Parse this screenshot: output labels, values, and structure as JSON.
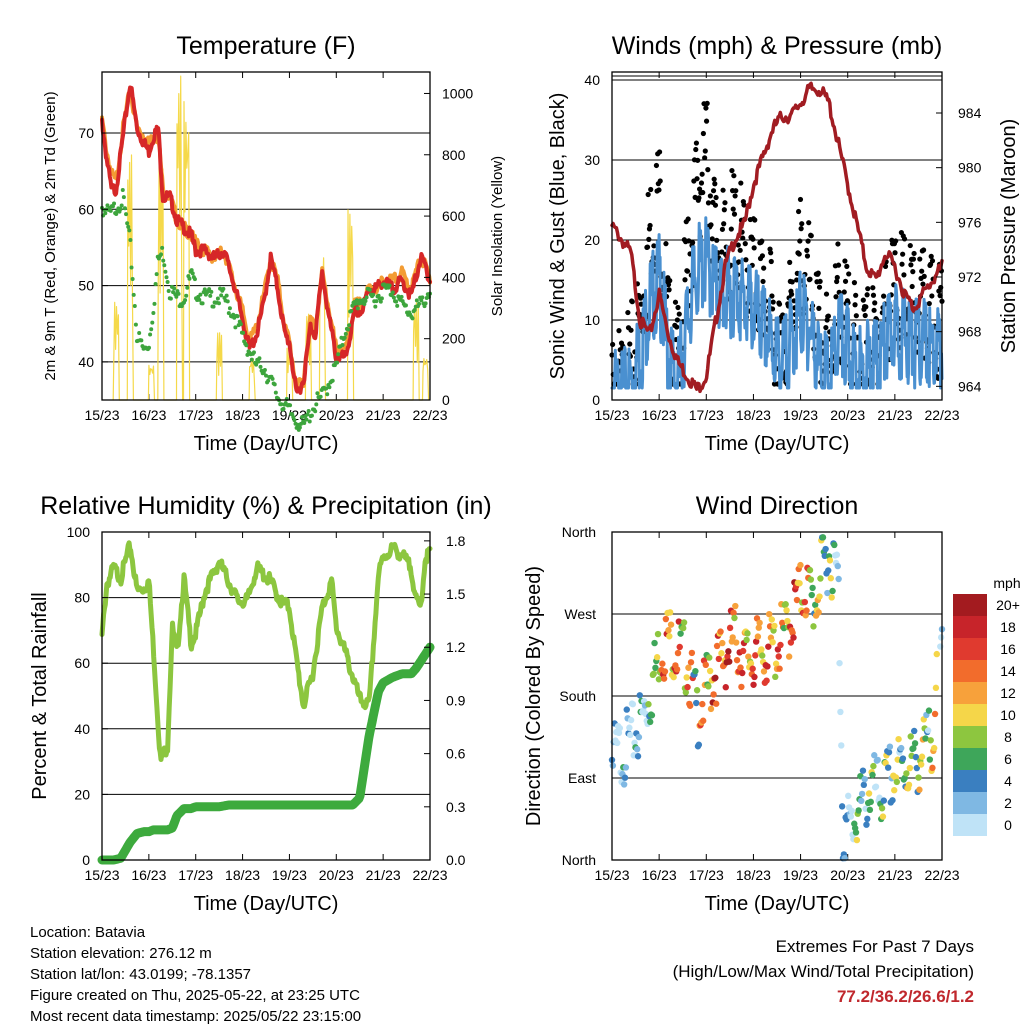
{
  "x_ticks": [
    "15/23",
    "16/23",
    "17/23",
    "18/23",
    "19/23",
    "20/23",
    "21/23",
    "22/23"
  ],
  "x_label": "Time (Day/UTC)",
  "panels": {
    "temperature": {
      "title": "Temperature (F)",
      "ylabel_left": "2m & 9m T (Red, Orange) & 2m Td (Green)",
      "ylabel_right": "Solar Insolation (Yellow)",
      "left_ticks": [
        "40",
        "50",
        "60",
        "70"
      ],
      "right_ticks": [
        "0",
        "200",
        "400",
        "600",
        "800",
        "1000"
      ]
    },
    "winds": {
      "title": "Winds (mph) & Pressure (mb)",
      "ylabel_left": "Sonic Wind & Gust (Blue, Black)",
      "ylabel_right": "Station Pressure (Maroon)",
      "left_ticks": [
        "0",
        "10",
        "20",
        "30",
        "40"
      ],
      "right_ticks": [
        "964",
        "968",
        "972",
        "976",
        "980",
        "984"
      ]
    },
    "humidity": {
      "title": "Relative Humidity (%) & Precipitation (in)",
      "ylabel_left": "Percent & Total Rainfall",
      "left_ticks": [
        "0",
        "20",
        "40",
        "60",
        "80",
        "100"
      ],
      "right_ticks": [
        "0.0",
        "0.3",
        "0.6",
        "0.9",
        "1.2",
        "1.5",
        "1.8"
      ]
    },
    "direction": {
      "title": "Wind Direction",
      "ylabel_left": "Direction (Colored By Speed)",
      "left_ticks": [
        "North",
        "East",
        "South",
        "West",
        "North"
      ],
      "legend_title": "mph",
      "legend_labels": [
        "20+",
        "18",
        "16",
        "14",
        "12",
        "10",
        "8",
        "6",
        "4",
        "2",
        "0"
      ],
      "legend_colors": [
        "#a31b1f",
        "#c7242a",
        "#e03a2f",
        "#f26c2c",
        "#f7a13b",
        "#f5d649",
        "#8dc63f",
        "#3ea65a",
        "#3a7fc0",
        "#7fb8e3",
        "#bfe3f7"
      ]
    }
  },
  "info": {
    "location": "Location: Batavia",
    "elevation": "Station elevation: 276.12 m",
    "latlon": "Station lat/lon: 43.0199; -78.1357",
    "created": "Figure created on Thu, 2025-05-22, at 23:25 UTC",
    "recent": "Most recent data timestamp: 2025/05/22 23:15:00"
  },
  "extremes": {
    "heading": "Extremes For Past 7 Days",
    "subheading": "(High/Low/Max Wind/Total Precipitation)",
    "values": "77.2/36.2/26.6/1.2"
  },
  "colors": {
    "temp2m": "#d62728",
    "temp9m": "#f39c33",
    "dewpoint": "#3da53d",
    "solar": "#f5d94a",
    "gust": "#000000",
    "wind": "#4a90d0",
    "pressure": "#a11c22",
    "rh": "#8cc63f",
    "precip": "#3daa3d"
  },
  "chart_data": [
    {
      "type": "line",
      "title": "Temperature (F)",
      "xlabel": "Time (Day/UTC)",
      "ylabel": "2m & 9m T (Red, Orange) & 2m Td (Green)",
      "ylabel_right": "Solar Insolation (Yellow)",
      "ylim": [
        35,
        78
      ],
      "ylim_right": [
        0,
        1070
      ],
      "x": [
        15.0,
        15.1,
        15.2,
        15.3,
        15.45,
        15.6,
        15.75,
        15.9,
        16.0,
        16.1,
        16.2,
        16.3,
        16.45,
        16.6,
        16.75,
        16.9,
        17.0,
        17.2,
        17.4,
        17.6,
        17.8,
        18.0,
        18.15,
        18.3,
        18.45,
        18.6,
        18.75,
        18.9,
        19.0,
        19.15,
        19.3,
        19.45,
        19.55,
        19.7,
        19.85,
        20.0,
        20.2,
        20.4,
        20.55,
        20.7,
        20.85,
        21.0,
        21.2,
        21.4,
        21.6,
        21.8,
        21.9,
        22.0
      ],
      "series": [
        {
          "name": "2m T",
          "values": [
            72,
            67,
            63,
            63,
            70,
            77,
            71,
            69,
            68,
            70,
            71,
            62,
            62,
            59,
            58,
            57,
            55,
            55,
            54,
            55,
            51,
            46,
            42,
            44,
            48,
            54,
            50,
            44,
            43,
            36,
            38,
            45,
            44,
            52,
            46,
            41,
            41,
            47,
            47,
            50,
            50,
            51,
            50,
            51,
            49,
            54,
            53,
            51
          ]
        },
        {
          "name": "9m T",
          "values": [
            72,
            68,
            65,
            64,
            71,
            76,
            71,
            70,
            69,
            70,
            70,
            63,
            62,
            59,
            58,
            57,
            56,
            55,
            54,
            55,
            51,
            47,
            43,
            45,
            49,
            54,
            51,
            45,
            43,
            37,
            38,
            46,
            45,
            52,
            47,
            42,
            42,
            48,
            48,
            50,
            50,
            51,
            51,
            52,
            50,
            54,
            53,
            51
          ]
        },
        {
          "name": "2m Td",
          "values": [
            61,
            60,
            60,
            61,
            62,
            56,
            44,
            42,
            43,
            48,
            54,
            55,
            50,
            49,
            49,
            52,
            50,
            49,
            49,
            49,
            47,
            44,
            42,
            40,
            40,
            38,
            36,
            35,
            34,
            33,
            32,
            34,
            35,
            36,
            38,
            40,
            45,
            48,
            49,
            49,
            49,
            50,
            50,
            48,
            47,
            48,
            49,
            50
          ]
        },
        {
          "name": "Solar Insolation",
          "axis": "right",
          "values": [
            0,
            0,
            0,
            0,
            0,
            0,
            0,
            0,
            0,
            0,
            0,
            0,
            0,
            0,
            0,
            0,
            0,
            0,
            0,
            0,
            0,
            0,
            0,
            0,
            0,
            0,
            0,
            0,
            0,
            0,
            0,
            0,
            0,
            0,
            0,
            0,
            0,
            0,
            0,
            0,
            0,
            0,
            0,
            0,
            0,
            0,
            0,
            0
          ],
          "daytime_peaks": [
            320,
            800,
            120,
            820,
            1070,
            1000,
            220,
            140,
            170,
            280,
            500,
            620,
            320,
            150
          ]
        }
      ]
    },
    {
      "type": "line",
      "title": "Winds (mph) & Pressure (mb)",
      "xlabel": "Time (Day/UTC)",
      "ylabel": "Sonic Wind & Gust (Blue, Black)",
      "ylabel_right": "Station Pressure (Maroon)",
      "ylim": [
        0,
        41
      ],
      "ylim_right": [
        963,
        987
      ],
      "x": [
        15.0,
        15.2,
        15.4,
        15.6,
        15.8,
        16.0,
        16.2,
        16.4,
        16.6,
        16.8,
        17.0,
        17.2,
        17.4,
        17.6,
        17.8,
        18.0,
        18.2,
        18.4,
        18.6,
        18.8,
        19.0,
        19.2,
        19.4,
        19.6,
        19.8,
        20.0,
        20.2,
        20.4,
        20.6,
        20.8,
        21.0,
        21.2,
        21.4,
        21.6,
        21.8,
        22.0
      ],
      "series": [
        {
          "name": "Gust",
          "values": [
            6,
            5,
            8,
            14,
            25,
            30,
            12,
            8,
            20,
            30,
            35,
            24,
            22,
            26,
            22,
            20,
            18,
            14,
            10,
            15,
            22,
            18,
            12,
            10,
            17,
            13,
            10,
            11,
            11,
            16,
            18,
            17,
            16,
            15,
            14,
            14
          ]
        },
        {
          "name": "Wind",
          "values": [
            4,
            3,
            5,
            9,
            15,
            18,
            8,
            5,
            13,
            19,
            20,
            17,
            16,
            17,
            15,
            14,
            12,
            10,
            7,
            10,
            14,
            12,
            7,
            5,
            11,
            9,
            6,
            7,
            7,
            10,
            12,
            11,
            10,
            10,
            9,
            9
          ]
        },
        {
          "name": "Pressure",
          "axis": "right",
          "values": [
            976,
            975,
            974,
            969,
            968,
            971,
            968,
            966,
            965,
            964,
            965,
            969,
            973,
            975,
            976,
            979,
            981,
            983,
            984,
            984,
            985,
            986,
            986,
            985,
            982,
            979,
            976,
            973,
            972,
            974,
            973,
            971,
            970,
            971,
            972,
            973
          ]
        }
      ]
    },
    {
      "type": "line",
      "title": "Relative Humidity (%) & Precipitation (in)",
      "xlabel": "Time (Day/UTC)",
      "ylabel": "Percent & Total Rainfall",
      "ylim": [
        0,
        100
      ],
      "ylim_right": [
        0,
        1.85
      ],
      "x": [
        15.0,
        15.1,
        15.25,
        15.4,
        15.6,
        15.75,
        15.9,
        16.0,
        16.1,
        16.25,
        16.4,
        16.5,
        16.6,
        16.75,
        16.9,
        17.0,
        17.2,
        17.5,
        17.7,
        17.9,
        18.1,
        18.3,
        18.6,
        18.8,
        19.0,
        19.15,
        19.3,
        19.5,
        19.7,
        19.9,
        20.0,
        20.2,
        20.35,
        20.5,
        20.7,
        20.9,
        21.0,
        21.2,
        21.4,
        21.6,
        21.7,
        21.8,
        21.9,
        22.0
      ],
      "series": [
        {
          "name": "Relative Humidity",
          "values": [
            69,
            85,
            90,
            87,
            97,
            83,
            84,
            86,
            65,
            31,
            36,
            72,
            64,
            87,
            67,
            70,
            83,
            92,
            86,
            80,
            80,
            90,
            86,
            80,
            78,
            62,
            48,
            58,
            78,
            86,
            72,
            64,
            57,
            50,
            48,
            88,
            93,
            96,
            94,
            90,
            80,
            78,
            93,
            95
          ]
        },
        {
          "name": "Total Precipitation",
          "axis": "right",
          "values": [
            0,
            0,
            0,
            0.01,
            0.1,
            0.15,
            0.16,
            0.16,
            0.17,
            0.17,
            0.17,
            0.18,
            0.25,
            0.29,
            0.29,
            0.3,
            0.3,
            0.3,
            0.31,
            0.31,
            0.31,
            0.31,
            0.31,
            0.31,
            0.31,
            0.31,
            0.31,
            0.31,
            0.31,
            0.31,
            0.31,
            0.31,
            0.31,
            0.35,
            0.7,
            0.95,
            1.0,
            1.03,
            1.05,
            1.05,
            1.08,
            1.12,
            1.16,
            1.2
          ]
        }
      ]
    },
    {
      "type": "scatter",
      "title": "Wind Direction",
      "xlabel": "Time (Day/UTC)",
      "ylabel": "Direction (Colored By Speed)",
      "y_categories": [
        "North",
        "East",
        "South",
        "West",
        "North"
      ],
      "ylim": [
        0,
        360
      ],
      "color_scale": "mph",
      "x": [
        15.0,
        15.2,
        15.4,
        15.6,
        15.8,
        16.0,
        16.2,
        16.4,
        16.6,
        16.8,
        17.0,
        17.2,
        17.4,
        17.6,
        17.8,
        18.0,
        18.3,
        18.5,
        18.7,
        18.9,
        19.1,
        19.3,
        19.5,
        19.6,
        19.8,
        19.9,
        20.1,
        20.3,
        20.5,
        20.7,
        20.9,
        21.1,
        21.3,
        21.5,
        21.7,
        21.8,
        22.0
      ],
      "series": [
        {
          "name": "Direction",
          "values": [
            130,
            140,
            150,
            170,
            200,
            250,
            265,
            250,
            240,
            180,
            205,
            230,
            245,
            265,
            240,
            245,
            250,
            255,
            270,
            300,
            320,
            300,
            345,
            355,
            330,
            50,
            60,
            80,
            100,
            90,
            110,
            120,
            125,
            130,
            145,
            160,
            265
          ]
        },
        {
          "name": "Speed",
          "values": [
            3,
            3,
            2,
            4,
            6,
            15,
            18,
            16,
            14,
            12,
            14,
            17,
            18,
            17,
            16,
            16,
            16,
            15,
            14,
            18,
            15,
            12,
            10,
            8,
            5,
            4,
            6,
            8,
            7,
            6,
            9,
            8,
            10,
            11,
            9,
            12,
            9
          ]
        }
      ]
    }
  ]
}
